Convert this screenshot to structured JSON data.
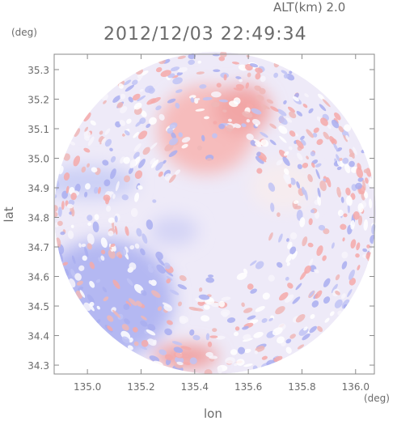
{
  "chart_data": {
    "type": "radar-field",
    "header_left": "ALT(km) 2.0",
    "title": "2012/12/03 22:49:34",
    "y_unit": "(deg)",
    "x_unit": "(deg)",
    "ylabel": "lat",
    "xlabel": "lon",
    "xlim": [
      134.876,
      136.07
    ],
    "xticks": [
      {
        "value": 135,
        "label": "135.0"
      },
      135.2,
      135.4,
      135.6,
      135.8,
      {
        "value": 136,
        "label": "136.0"
      }
    ],
    "ylim": [
      34.27,
      35.352
    ],
    "yticks": [
      35.3,
      35.2,
      35.1,
      {
        "value": 35,
        "label": "35.0"
      },
      34.9,
      34.8,
      34.7,
      34.6,
      34.5,
      34.4,
      34.3
    ]
  }
}
